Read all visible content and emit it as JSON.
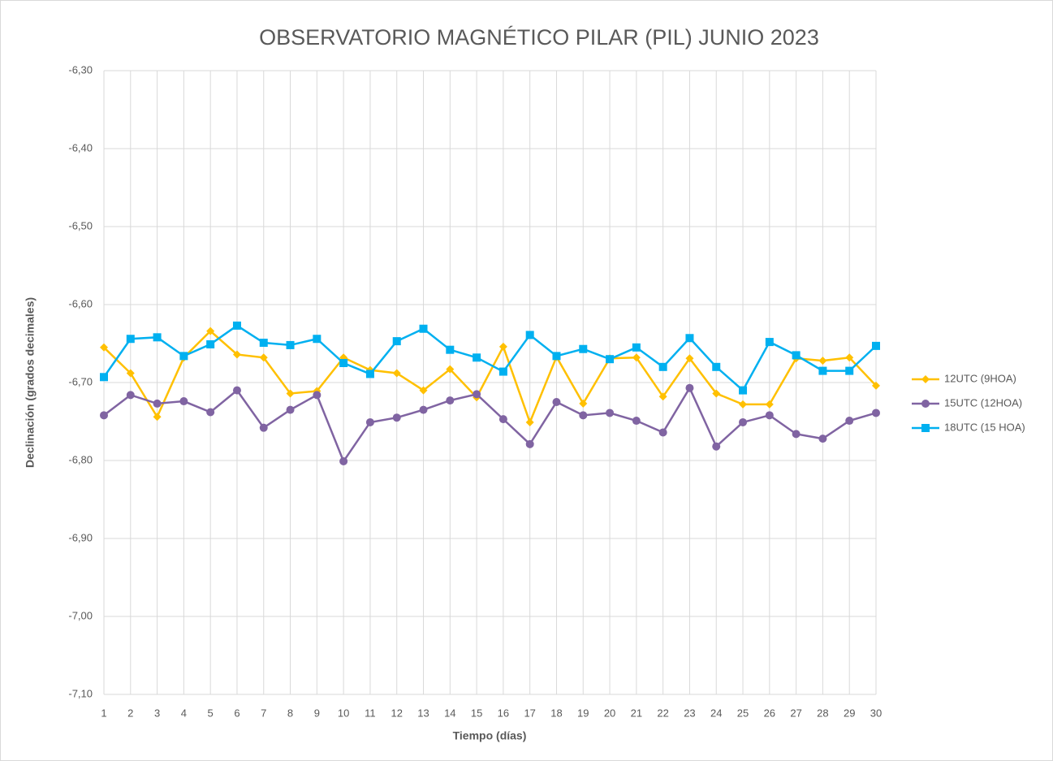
{
  "chart_data": {
    "type": "line",
    "title": "OBSERVATORIO MAGNÉTICO PILAR (PIL) JUNIO 2023",
    "x_label": "Tiempo (días)",
    "y_label": "Declinación (grados decimales)",
    "x": [
      1,
      2,
      3,
      4,
      5,
      6,
      7,
      8,
      9,
      10,
      11,
      12,
      13,
      14,
      15,
      16,
      17,
      18,
      19,
      20,
      21,
      22,
      23,
      24,
      25,
      26,
      27,
      28,
      29,
      30
    ],
    "xlim": [
      1,
      30
    ],
    "xticks": [
      1,
      2,
      3,
      4,
      5,
      6,
      7,
      8,
      9,
      10,
      11,
      12,
      13,
      14,
      15,
      16,
      17,
      18,
      19,
      20,
      21,
      22,
      23,
      24,
      25,
      26,
      27,
      28,
      29,
      30
    ],
    "ylim": [
      -7.1,
      -6.3
    ],
    "yticks": [
      {
        "value": -7.1,
        "label": "-7,10"
      },
      {
        "value": -7.0,
        "label": "-7,00"
      },
      {
        "value": -6.9,
        "label": "-6,90"
      },
      {
        "value": -6.8,
        "label": "-6,80"
      },
      {
        "value": -6.7,
        "label": "-6,70"
      },
      {
        "value": -6.6,
        "label": "-6,60"
      },
      {
        "value": -6.5,
        "label": "-6,50"
      },
      {
        "value": -6.4,
        "label": "-6,40"
      },
      {
        "value": -6.3,
        "label": "-6,30"
      }
    ],
    "grid": true,
    "legend": "right",
    "series": [
      {
        "name": "12UTC (9HOA)",
        "color": "#ffc000",
        "marker": "diamond",
        "values": [
          -6.655,
          -6.688,
          -6.744,
          -6.668,
          -6.634,
          -6.664,
          -6.668,
          -6.714,
          -6.711,
          -6.668,
          -6.684,
          -6.688,
          -6.71,
          -6.683,
          -6.719,
          -6.654,
          -6.751,
          -6.667,
          -6.727,
          -6.669,
          -6.668,
          -6.718,
          -6.669,
          -6.714,
          -6.728,
          -6.728,
          -6.669,
          -6.672,
          -6.668,
          -6.704
        ]
      },
      {
        "name": "15UTC (12HOA)",
        "color": "#8064a2",
        "marker": "circle",
        "values": [
          -6.742,
          -6.716,
          -6.727,
          -6.724,
          -6.738,
          -6.71,
          -6.758,
          -6.735,
          -6.716,
          -6.801,
          -6.751,
          -6.745,
          -6.735,
          -6.723,
          -6.715,
          -6.747,
          -6.779,
          -6.725,
          -6.742,
          -6.739,
          -6.749,
          -6.764,
          -6.707,
          -6.782,
          -6.751,
          -6.742,
          -6.766,
          -6.772,
          -6.749,
          -6.739
        ]
      },
      {
        "name": "18UTC (15 HOA)",
        "color": "#00b0f0",
        "marker": "square",
        "values": [
          -6.693,
          -6.644,
          -6.642,
          -6.666,
          -6.651,
          -6.627,
          -6.649,
          -6.652,
          -6.644,
          -6.675,
          -6.689,
          -6.647,
          -6.631,
          -6.658,
          -6.668,
          -6.686,
          -6.639,
          -6.666,
          -6.657,
          -6.67,
          -6.655,
          -6.68,
          -6.643,
          -6.68,
          -6.71,
          -6.648,
          -6.665,
          -6.685,
          -6.685,
          -6.653
        ]
      }
    ]
  }
}
